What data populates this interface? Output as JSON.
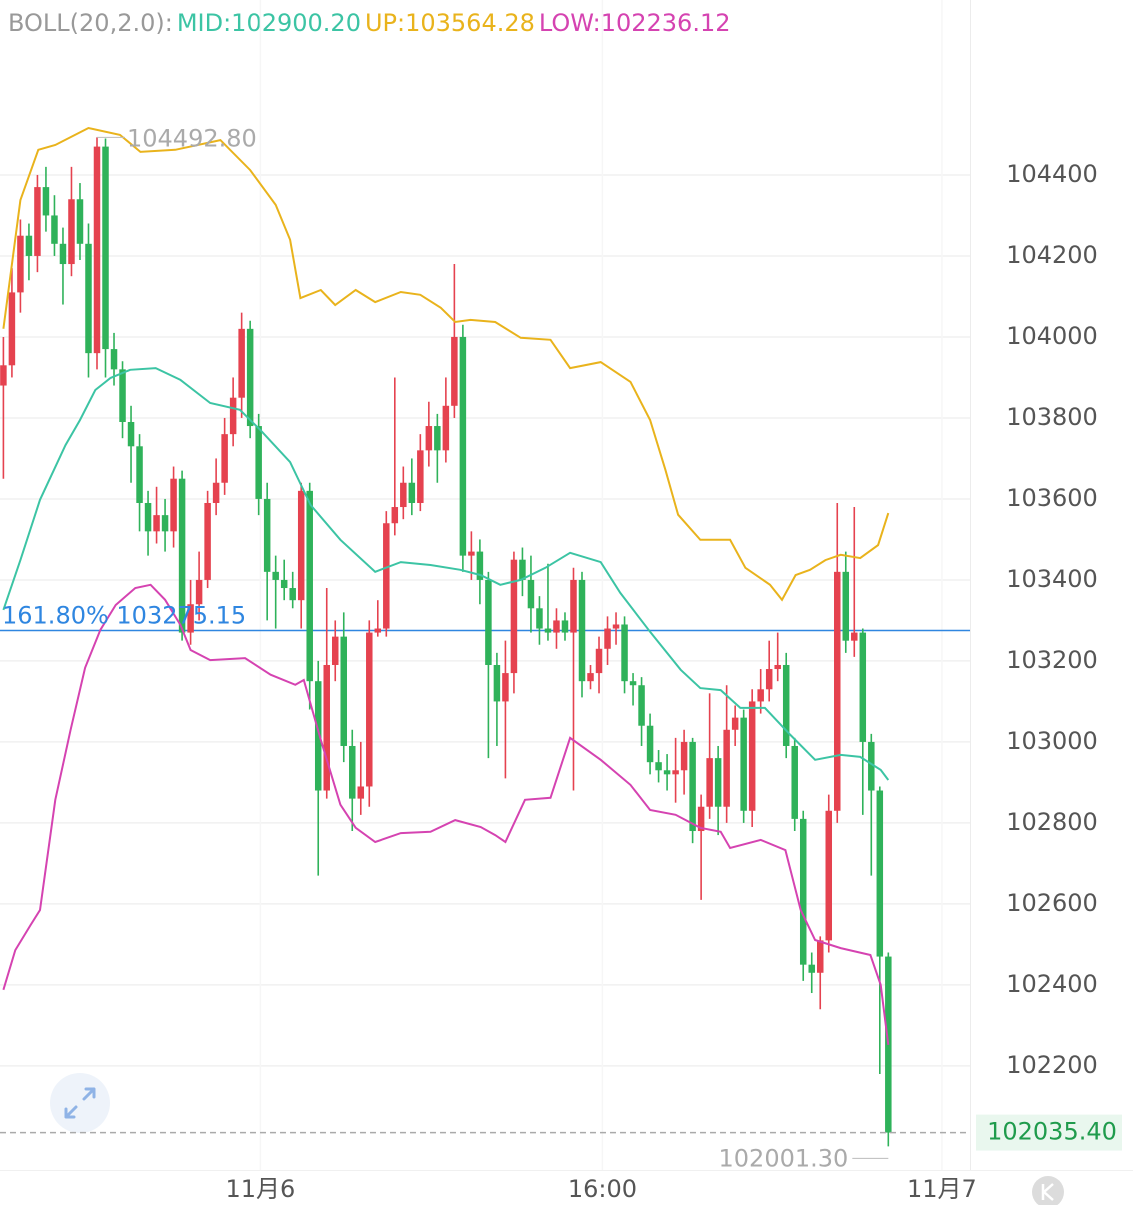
{
  "chart_data": {
    "type": "candlestick",
    "indicator": "BOLL(20,2.0):",
    "up_color": "#e5424f",
    "down_color": "#2fb25a",
    "open": [
      103880,
      103930,
      104110,
      104250,
      104200,
      104370,
      104300,
      104230,
      104180,
      104340,
      104230,
      103960,
      104470,
      103970,
      103920,
      103790,
      103730,
      103590,
      103520,
      103560,
      103520,
      103650,
      103270,
      103340,
      103400,
      103590,
      103640,
      103760,
      103850,
      104020,
      103780,
      103600,
      103420,
      103400,
      103380,
      103350,
      103620,
      103150,
      102880,
      103190,
      103260,
      102990,
      102860,
      102890,
      103270,
      103280,
      103540,
      103580,
      103640,
      103590,
      103720,
      103780,
      103720,
      103830,
      104000,
      103460,
      103470,
      103400,
      103190,
      103100,
      103170,
      103450,
      103400,
      103330,
      103280,
      103270,
      103300,
      103270,
      103400,
      103150,
      103170,
      103230,
      103280,
      103290,
      103150,
      103140,
      103040,
      102950,
      102930,
      102920,
      102930,
      103000,
      102780,
      102840,
      102960,
      102840,
      103030,
      103060,
      102830,
      103100,
      103130,
      103180,
      103190,
      102990,
      102810,
      102450,
      102430,
      102510,
      102830,
      103420,
      103250,
      103270,
      103000,
      102880,
      102470
    ],
    "high": [
      104000,
      104170,
      104290,
      104280,
      104400,
      104420,
      104350,
      104270,
      104420,
      104380,
      104280,
      104492.8,
      104490,
      104010,
      103940,
      103830,
      103760,
      103620,
      103630,
      103600,
      103680,
      103670,
      103400,
      103470,
      103620,
      103700,
      103800,
      103900,
      104060,
      104040,
      103810,
      103640,
      103460,
      103450,
      103420,
      103640,
      103640,
      103200,
      103380,
      103300,
      103320,
      103030,
      103000,
      103300,
      103350,
      103570,
      103900,
      103680,
      103700,
      103760,
      103840,
      103810,
      103900,
      104180,
      104030,
      103520,
      103500,
      103420,
      103220,
      103250,
      103470,
      103480,
      103460,
      103360,
      103440,
      103330,
      103320,
      103430,
      103420,
      103190,
      103260,
      103310,
      103320,
      103310,
      103170,
      103160,
      103070,
      102980,
      102970,
      103010,
      103030,
      103010,
      102870,
      103120,
      102990,
      103140,
      103090,
      103080,
      103130,
      103180,
      103250,
      103270,
      103220,
      103010,
      102830,
      102480,
      102520,
      102870,
      103590,
      103470,
      103580,
      103280,
      103020,
      102890,
      102480
    ],
    "low": [
      103650,
      103900,
      104060,
      104140,
      104160,
      104260,
      104200,
      104080,
      104150,
      104190,
      103900,
      103920,
      103900,
      103880,
      103750,
      103640,
      103520,
      103460,
      103490,
      103470,
      103480,
      103250,
      103240,
      103300,
      103380,
      103560,
      103610,
      103730,
      103800,
      103750,
      103560,
      103300,
      103280,
      103350,
      103330,
      103280,
      103080,
      102670,
      102860,
      103150,
      102950,
      102780,
      102820,
      102840,
      103260,
      103260,
      103510,
      103550,
      103560,
      103570,
      103680,
      103640,
      103690,
      103800,
      103420,
      103400,
      103340,
      102960,
      102990,
      102910,
      103120,
      103360,
      103270,
      103240,
      103250,
      103230,
      103250,
      102880,
      103110,
      103130,
      103120,
      103190,
      103240,
      103120,
      103090,
      102990,
      102920,
      102900,
      102880,
      102850,
      102870,
      102750,
      102610,
      102810,
      102770,
      102800,
      102990,
      102800,
      102790,
      103070,
      103100,
      103150,
      102960,
      102780,
      102410,
      102380,
      102340,
      102480,
      102800,
      103220,
      103210,
      102820,
      102670,
      102180,
      102001.3
    ],
    "close": [
      103930,
      104110,
      104250,
      104200,
      104370,
      104300,
      104230,
      104180,
      104340,
      104230,
      103960,
      104470,
      103970,
      103920,
      103790,
      103730,
      103590,
      103520,
      103560,
      103520,
      103650,
      103270,
      103340,
      103400,
      103590,
      103640,
      103760,
      103850,
      104020,
      103780,
      103600,
      103420,
      103400,
      103380,
      103350,
      103620,
      103150,
      102880,
      103190,
      103260,
      102990,
      102860,
      102890,
      103270,
      103280,
      103540,
      103580,
      103640,
      103590,
      103720,
      103780,
      103720,
      103830,
      104000,
      103460,
      103470,
      103400,
      103190,
      103100,
      103170,
      103450,
      103400,
      103330,
      103280,
      103270,
      103300,
      103270,
      103400,
      103150,
      103170,
      103230,
      103280,
      103290,
      103150,
      103140,
      103040,
      102950,
      102930,
      102920,
      102930,
      103000,
      102780,
      102840,
      102960,
      102840,
      103030,
      103060,
      102830,
      103100,
      103130,
      103180,
      103190,
      102990,
      102810,
      102450,
      102430,
      102510,
      102830,
      103420,
      103250,
      103270,
      103000,
      102880,
      102470,
      102035.4
    ],
    "series": [
      {
        "label": "MID:102900.20",
        "color": "#3cc4a4",
        "x": [
          0,
          2,
          4.3,
          7.3,
          9,
          10.8,
          12.6,
          14.9,
          17.9,
          20.8,
          24.3,
          27.8,
          30.2,
          33.7,
          36.1,
          39.6,
          43.7,
          46.7,
          50.2,
          53.7,
          56.1,
          58.4,
          60.8,
          63.7,
          66.6,
          70.2,
          72.5,
          76,
          79.6,
          81.9,
          84.3,
          86.6,
          89.5,
          92.5,
          95.4,
          98.4,
          100.7,
          103.1,
          104
        ],
        "values": [
          103326,
          103449,
          103598,
          103733,
          103795,
          103869,
          103899,
          103919,
          103923,
          103894,
          103837,
          103820,
          103770,
          103691,
          103585,
          103499,
          103420,
          103444,
          103437,
          103425,
          103412,
          103388,
          103400,
          103430,
          103467,
          103444,
          103368,
          103272,
          103178,
          103133,
          103128,
          103084,
          103084,
          103017,
          102956,
          102968,
          102963,
          102931,
          102906
        ]
      },
      {
        "label": "UP:103564.28",
        "color": "#e9b31c",
        "x": [
          0,
          2,
          4.1,
          6.1,
          10,
          13.7,
          16.1,
          20.2,
          25.5,
          29,
          32,
          33.7,
          34.9,
          37.3,
          39,
          41.4,
          43.7,
          46.7,
          49,
          51.4,
          53.1,
          54.9,
          57.8,
          60.8,
          64.3,
          66.6,
          70.2,
          73.7,
          76,
          77.8,
          79.3,
          81.9,
          85.4,
          87.2,
          90.1,
          91.5,
          93.1,
          94.8,
          96.6,
          98.4,
          100.7,
          102.8,
          104
        ],
        "values": [
          104020,
          104338,
          104462,
          104474,
          104516,
          104499,
          104457,
          104462,
          104486,
          104412,
          104326,
          104240,
          104096,
          104116,
          104079,
          104116,
          104086,
          104111,
          104104,
          104072,
          104037,
          104042,
          104037,
          103998,
          103993,
          103923,
          103938,
          103889,
          103795,
          103672,
          103561,
          103499,
          103499,
          103430,
          103388,
          103351,
          103412,
          103425,
          103449,
          103462,
          103454,
          103486,
          103565
        ]
      },
      {
        "label": "LOW:102236.12",
        "color": "#d543b1",
        "x": [
          0,
          1.4,
          3.2,
          4.3,
          6.1,
          7.9,
          9.6,
          11.4,
          13.2,
          15.5,
          17.3,
          19,
          20.8,
          22,
          24.3,
          28.4,
          31.4,
          34.3,
          35.3,
          37.3,
          39.6,
          41.4,
          43.7,
          46.7,
          50.2,
          53.1,
          56.1,
          57.8,
          59,
          61.3,
          64.3,
          66.6,
          70.2,
          73.7,
          76,
          79,
          81.9,
          84.3,
          85.4,
          89,
          91.9,
          93.7,
          95.4,
          98.4,
          101.9,
          103.1,
          104
        ],
        "values": [
          102388,
          102486,
          102548,
          102585,
          102857,
          103030,
          103183,
          103277,
          103338,
          103380,
          103388,
          103351,
          103289,
          103227,
          103202,
          103207,
          103166,
          103141,
          103153,
          103005,
          102845,
          102788,
          102753,
          102775,
          102778,
          102807,
          102790,
          102770,
          102753,
          102857,
          102862,
          103010,
          102956,
          102894,
          102832,
          102820,
          102788,
          102778,
          102738,
          102758,
          102733,
          102585,
          102511,
          102491,
          102474,
          102400,
          102252
        ]
      }
    ],
    "fib_line": {
      "value": 103275.15,
      "label": "161.80% 103275.15",
      "color": "#2f86e0"
    },
    "last_price": {
      "value": 102035.4,
      "label": "102035.40"
    },
    "high_marker": {
      "x": 11,
      "value": 104492.8,
      "label": "104492.80"
    },
    "low_marker": {
      "x": 104,
      "value": 102001.3,
      "label": "102001.30"
    },
    "xlim": [
      -0.4,
      113.6
    ],
    "xticks": [
      {
        "value": 30.2,
        "label": "11月6"
      },
      {
        "value": 70.4,
        "label": "16:00"
      },
      {
        "value": 110.3,
        "label": "11月7"
      }
    ],
    "ylim": [
      101943,
      104832
    ],
    "yticks": [
      102200,
      102400,
      102600,
      102800,
      103000,
      103200,
      103400,
      103600,
      103800,
      104000,
      104200,
      104400
    ],
    "grid": true
  }
}
